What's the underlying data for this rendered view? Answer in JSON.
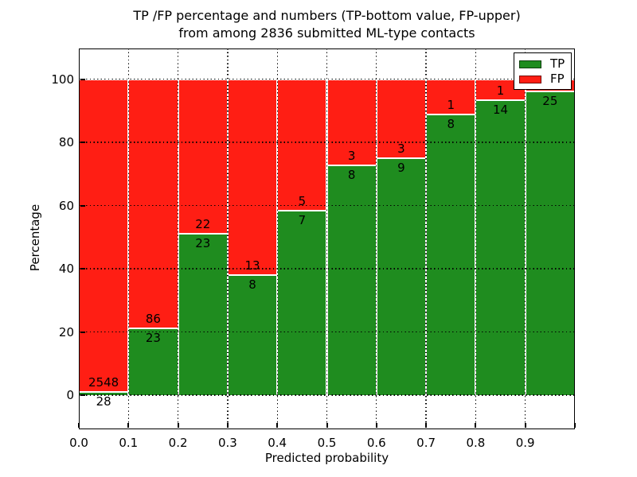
{
  "figure": {
    "title_line1": "TP /FP percentage and numbers (TP-bottom value, FP-upper)",
    "title_line2": "from among 2836 submitted ML-type contacts"
  },
  "axes": {
    "xlabel": "Predicted probability",
    "ylabel": "Percentage"
  },
  "legend": {
    "position": "upper right",
    "items": [
      {
        "label": "TP",
        "color": "#1f8c1f"
      },
      {
        "label": "FP",
        "color": "#ff1e14"
      }
    ]
  },
  "chart_data": {
    "type": "bar",
    "stacked": true,
    "title": "TP /FP percentage and numbers (TP-bottom value, FP-upper) from among 2836 submitted ML-type contacts",
    "xlabel": "Predicted probability",
    "ylabel": "Percentage",
    "total_submitted_contacts": 2836,
    "x_bin_edges": [
      0.0,
      0.1,
      0.2,
      0.3,
      0.4,
      0.5,
      0.6,
      0.7,
      0.8,
      0.9,
      1.0
    ],
    "x_tick_labels": [
      "0.0",
      "0.1",
      "0.2",
      "0.3",
      "0.4",
      "0.5",
      "0.6",
      "0.7",
      "0.8",
      "0.9"
    ],
    "y_ticks": [
      0,
      20,
      40,
      60,
      80,
      100
    ],
    "y_tick_labels": [
      "0",
      "20",
      "40",
      "60",
      "80",
      "100"
    ],
    "ylim": [
      -10.7,
      110.3
    ],
    "grid": true,
    "bar_colors": {
      "tp": "#1f8c1f",
      "fp": "#ff1e14",
      "edge": "#ffffff"
    },
    "series": [
      {
        "name": "TP",
        "counts": [
          28,
          23,
          23,
          8,
          7,
          8,
          9,
          8,
          14,
          25
        ],
        "pct": [
          1.1,
          21.1,
          51.1,
          38.1,
          58.3,
          72.7,
          75.0,
          88.9,
          93.3,
          96.2
        ],
        "labels": [
          "28",
          "23",
          "23",
          "8",
          "7",
          "8",
          "9",
          "8",
          "14",
          "25"
        ]
      },
      {
        "name": "FP",
        "pct": [
          98.9,
          78.9,
          48.9,
          61.9,
          41.7,
          27.3,
          25.0,
          11.1,
          6.7,
          3.8
        ],
        "labels": [
          "2548",
          "86",
          "22",
          "13",
          "5",
          "3",
          "3",
          "1",
          "1",
          ""
        ]
      }
    ]
  }
}
